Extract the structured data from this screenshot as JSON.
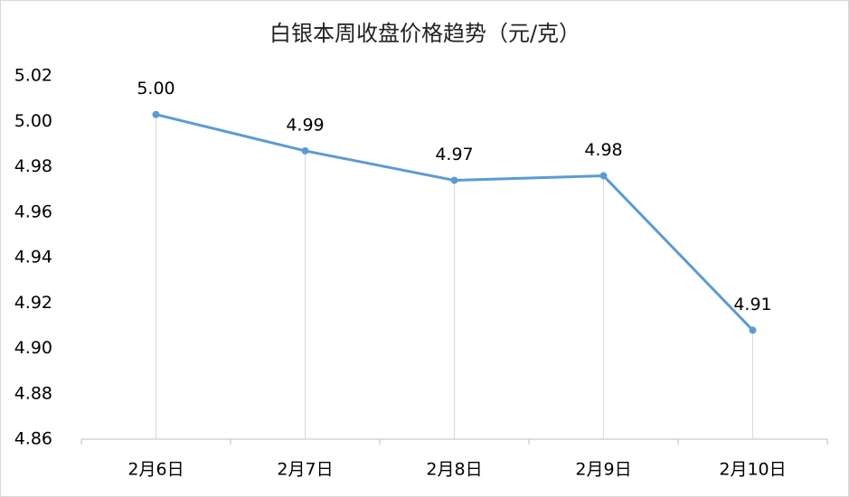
{
  "chart_data": {
    "type": "line",
    "title": "白银本周收盘价格趋势（元/克）",
    "categories": [
      "2月6日",
      "2月7日",
      "2月8日",
      "2月9日",
      "2月10日"
    ],
    "series": [
      {
        "name": "白银",
        "color": "#5b9bd5",
        "values": [
          5.003,
          4.987,
          4.974,
          4.976,
          4.908
        ],
        "value_labels": [
          "5.00",
          "4.99",
          "4.97",
          "4.98",
          "4.91"
        ]
      }
    ],
    "ylim": [
      4.86,
      5.02
    ],
    "yticks": [
      4.86,
      4.88,
      {
        "value": 4.9,
        "label": "4.90"
      },
      4.92,
      4.94,
      4.96,
      4.98,
      {
        "value": 5,
        "label": "5.00"
      },
      5.02
    ],
    "drop_lines": true
  }
}
